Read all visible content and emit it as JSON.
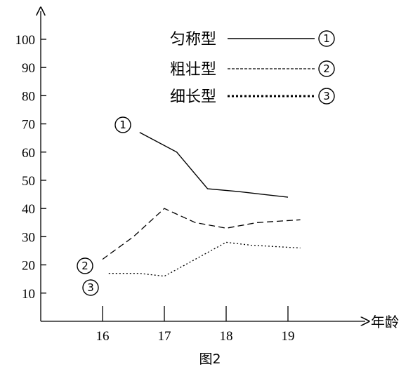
{
  "caption": "图2",
  "chart_data": {
    "type": "line",
    "xlabel": "年龄",
    "ylabel": "",
    "x": [
      16,
      17,
      18,
      19
    ],
    "ylim": [
      0,
      110
    ],
    "yticks": [
      10,
      20,
      30,
      40,
      50,
      60,
      70,
      80,
      90,
      100
    ],
    "grid": false,
    "legend_position": "top-right",
    "series": [
      {
        "name": "匀称型",
        "marker": "1",
        "style": "solid",
        "points": [
          [
            16.6,
            67
          ],
          [
            17.2,
            60
          ],
          [
            17.7,
            47
          ],
          [
            18.2,
            46
          ],
          [
            19,
            44
          ]
        ]
      },
      {
        "name": "粗壮型",
        "marker": "2",
        "style": "dashed",
        "points": [
          [
            16,
            22
          ],
          [
            16.5,
            30
          ],
          [
            17,
            40
          ],
          [
            17.5,
            35
          ],
          [
            18,
            33
          ],
          [
            18.5,
            35
          ],
          [
            19.2,
            36
          ]
        ]
      },
      {
        "name": "细长型",
        "marker": "3",
        "style": "dotted",
        "points": [
          [
            16.1,
            17
          ],
          [
            16.6,
            17
          ],
          [
            17,
            16
          ],
          [
            17.5,
            22
          ],
          [
            18,
            28
          ],
          [
            18.4,
            27
          ],
          [
            19.2,
            26
          ]
        ]
      }
    ]
  }
}
